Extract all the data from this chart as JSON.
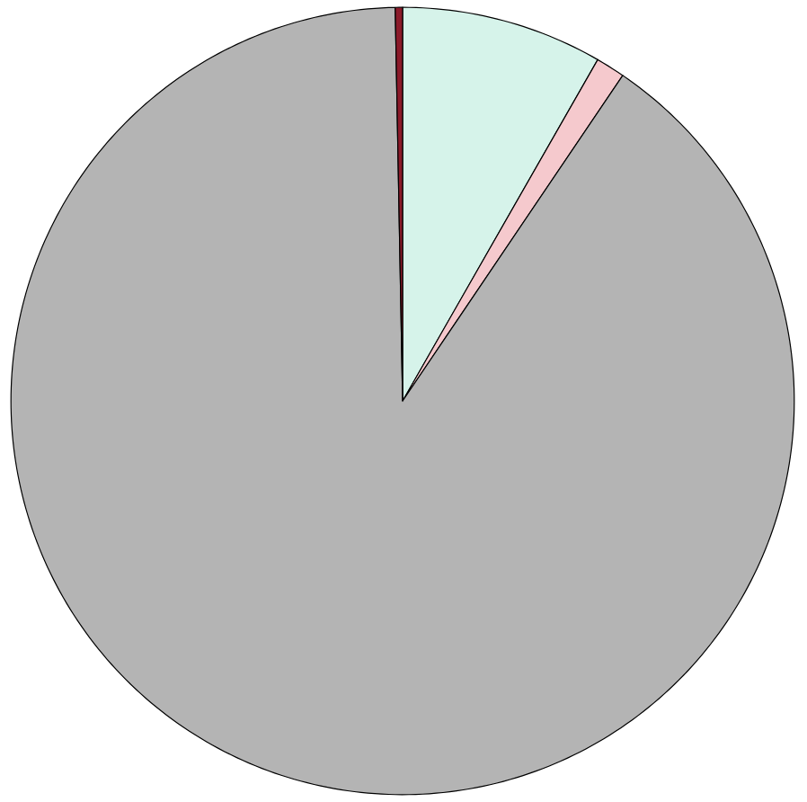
{
  "chart_data": {
    "type": "pie",
    "categories": [
      null,
      null,
      null,
      null
    ],
    "values": [
      8.3,
      1.2,
      90.2,
      0.3
    ],
    "colors": [
      "#d6f3ea",
      "#f5c9cd",
      "#b4b4b4",
      "#8b1a2a"
    ]
  }
}
